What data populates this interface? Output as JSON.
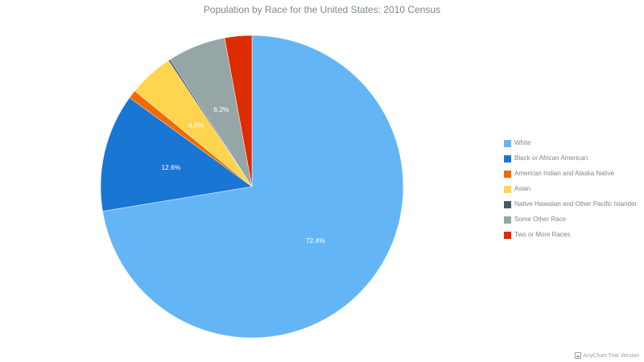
{
  "chart_data": {
    "type": "pie",
    "title": "Population by Race for the United States: 2010 Census",
    "legend_position": "right",
    "categories": [
      "White",
      "Black or African American",
      "American Indian and Alaska Native",
      "Asian",
      "Native Hawaiian and Other Pacific Islander",
      "Some Other Race",
      "Two or More Races"
    ],
    "values": [
      72.4,
      12.6,
      0.9,
      4.8,
      0.2,
      6.2,
      2.9
    ],
    "labels": [
      "72.4%",
      "12.6%",
      "",
      "4.8%",
      "",
      "6.2%",
      ""
    ],
    "colors": [
      "#64b5f6",
      "#1976d2",
      "#ef6c00",
      "#ffd54f",
      "#455a64",
      "#96a6a6",
      "#dd2c00"
    ]
  },
  "watermark": "AnyChart Trial Version"
}
